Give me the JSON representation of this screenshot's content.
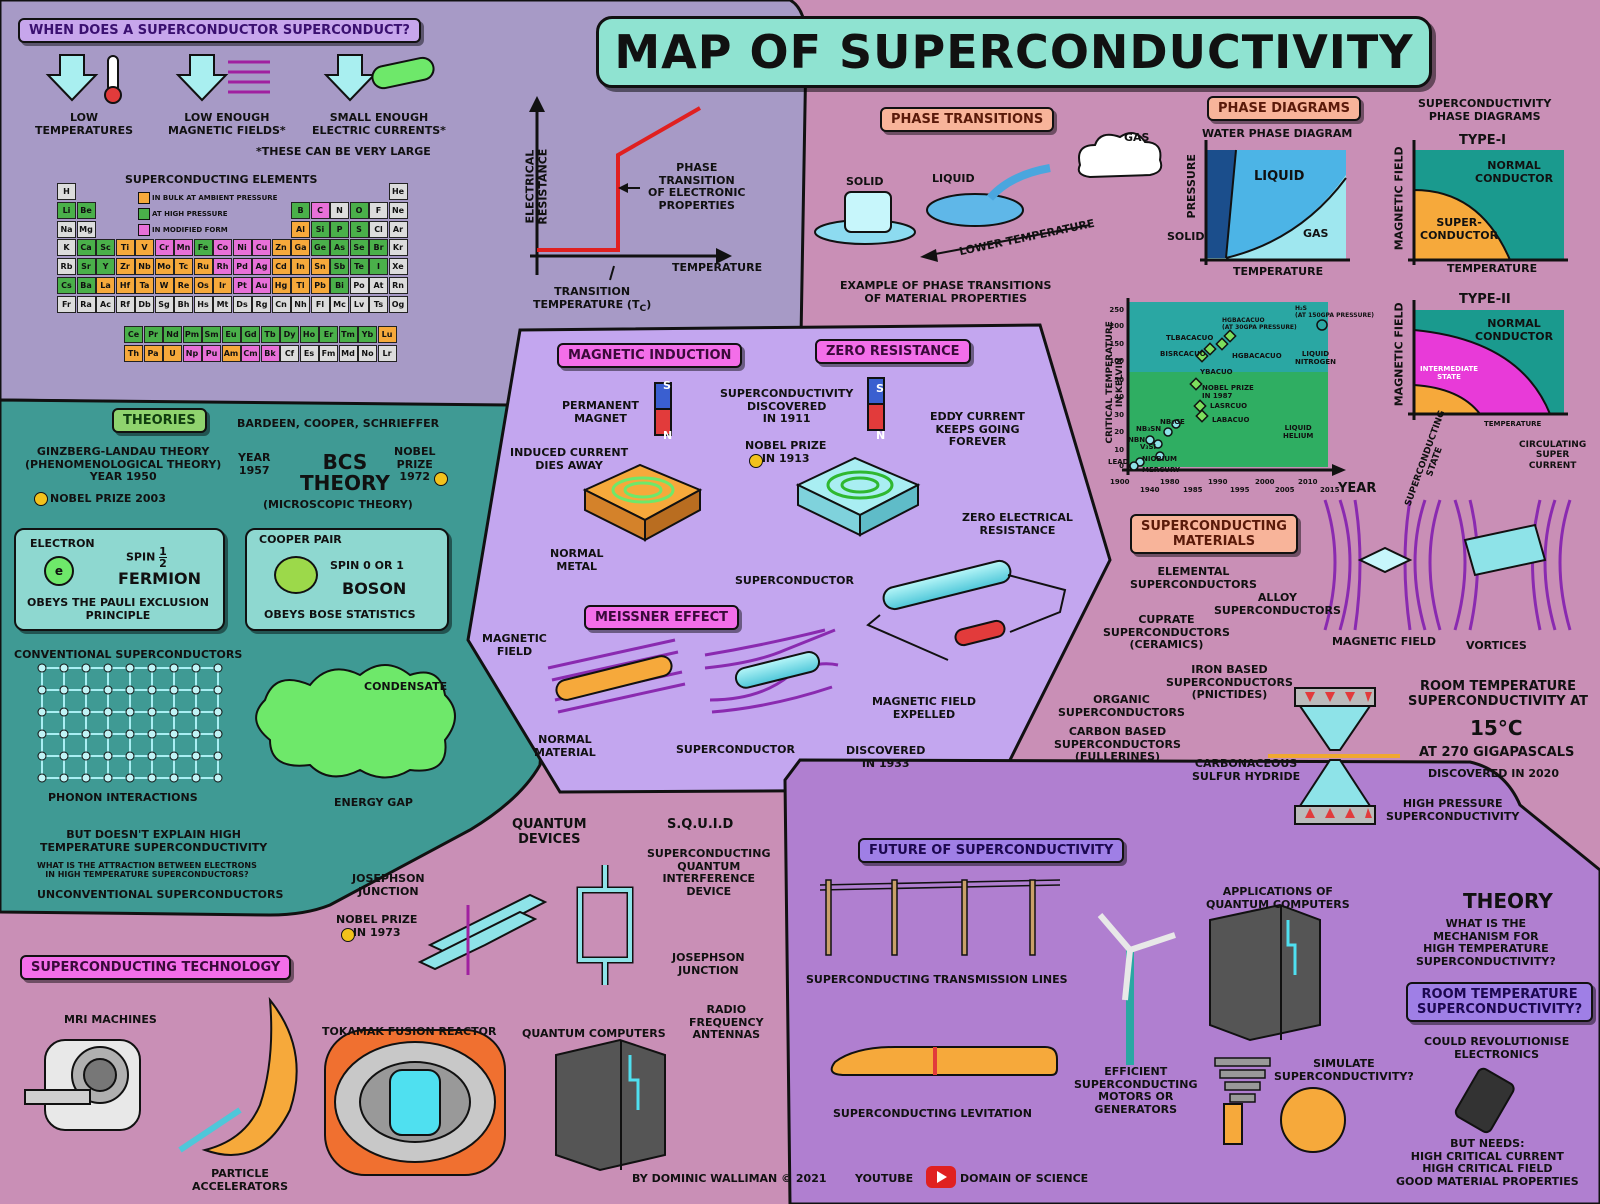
{
  "title": "MAP OF SUPERCONDUCTIVITY",
  "colors": {
    "accent_teal": "#8fe3d1",
    "panel_lavender": "#a79ac6",
    "panel_teal": "#3f9a94",
    "panel_purple": "#c3a6ef",
    "panel_violet": "#b07fd0",
    "background": "#c98fb6",
    "resistance_line": "#e02020"
  },
  "when": {
    "heading": "WHEN DOES A SUPERCONDUCTOR SUPERCONDUCT?",
    "c1": "LOW\nTEMPERATURES",
    "c2": "LOW ENOUGH\nMAGNETIC FIELDS*",
    "c3": "SMALL ENOUGH\nELECTRIC CURRENTS*",
    "note": "*THESE CAN BE VERY LARGE",
    "elements_title": "SUPERCONDUCTING ELEMENTS",
    "legend": [
      "IN BULK AT AMBIENT PRESSURE",
      "AT HIGH PRESSURE",
      "IN MODIFIED FORM"
    ]
  },
  "periodic": {
    "rows": [
      [
        "H",
        "",
        "",
        "",
        "",
        "",
        "",
        "",
        "",
        "",
        "",
        "",
        "",
        "",
        "",
        "",
        "",
        "He"
      ],
      [
        "Li",
        "Be",
        "",
        "",
        "",
        "",
        "",
        "",
        "",
        "",
        "",
        "",
        "B",
        "C",
        "N",
        "O",
        "F",
        "Ne"
      ],
      [
        "Na",
        "Mg",
        "",
        "",
        "",
        "",
        "",
        "",
        "",
        "",
        "",
        "",
        "Al",
        "Si",
        "P",
        "S",
        "Cl",
        "Ar"
      ],
      [
        "K",
        "Ca",
        "Sc",
        "Ti",
        "V",
        "Cr",
        "Mn",
        "Fe",
        "Co",
        "Ni",
        "Cu",
        "Zn",
        "Ga",
        "Ge",
        "As",
        "Se",
        "Br",
        "Kr"
      ],
      [
        "Rb",
        "Sr",
        "Y",
        "Zr",
        "Nb",
        "Mo",
        "Tc",
        "Ru",
        "Rh",
        "Pd",
        "Ag",
        "Cd",
        "In",
        "Sn",
        "Sb",
        "Te",
        "I",
        "Xe"
      ],
      [
        "Cs",
        "Ba",
        "La",
        "Hf",
        "Ta",
        "W",
        "Re",
        "Os",
        "Ir",
        "Pt",
        "Au",
        "Hg",
        "Tl",
        "Pb",
        "Bi",
        "Po",
        "At",
        "Rn"
      ],
      [
        "Fr",
        "Ra",
        "Ac",
        "Rf",
        "Db",
        "Sg",
        "Bh",
        "Hs",
        "Mt",
        "Ds",
        "Rg",
        "Cn",
        "Nh",
        "Fl",
        "Mc",
        "Lv",
        "Ts",
        "Og"
      ]
    ],
    "lanthanides": [
      "Ce",
      "Pr",
      "Nd",
      "Pm",
      "Sm",
      "Eu",
      "Gd",
      "Tb",
      "Dy",
      "Ho",
      "Er",
      "Tm",
      "Yb",
      "Lu"
    ],
    "actinides": [
      "Th",
      "Pa",
      "U",
      "Np",
      "Pu",
      "Am",
      "Cm",
      "Bk",
      "Cf",
      "Es",
      "Fm",
      "Md",
      "No",
      "Lr"
    ],
    "ambient": [
      "Al",
      "Ti",
      "V",
      "Zn",
      "Ga",
      "Zr",
      "Nb",
      "Mo",
      "Tc",
      "Ru",
      "Cd",
      "In",
      "Sn",
      "La",
      "Hf",
      "Ta",
      "W",
      "Re",
      "Os",
      "Ir",
      "Hg",
      "Tl",
      "Pb",
      "Th",
      "Pa",
      "U",
      "Am",
      "Lu"
    ],
    "pressure": [
      "Li",
      "B",
      "O",
      "P",
      "S",
      "Ca",
      "Sc",
      "Ge",
      "As",
      "Se",
      "Br",
      "Sr",
      "Y",
      "Sb",
      "Te",
      "I",
      "Cs",
      "Ba",
      "Bi",
      "Si",
      "Fe",
      "Be",
      "Eu",
      "Ce",
      "Pr",
      "Nd",
      "Gd",
      "Tb",
      "Dy",
      "Ho",
      "Er",
      "Tm",
      "Yb",
      "Pm",
      "Sm"
    ],
    "modified": [
      "C",
      "Cr",
      "Pt",
      "Pd",
      "Au",
      "Cu",
      "Ni",
      "Co",
      "Mn",
      "Rh",
      "Ag",
      "Sc2",
      "Re2",
      "Cm",
      "Bk",
      "Np",
      "Pu"
    ]
  },
  "resistance": {
    "ylabel": "ELECTRICAL\nRESISTANCE",
    "xlabel": "TEMPERATURE",
    "phase_note": "PHASE\nTRANSITION\nOF ELECTRONIC\nPROPERTIES",
    "tc_label": "TRANSITION\nTEMPERATURE (T",
    "tc_sub": "c",
    "tc_close": ")"
  },
  "phase_transitions": {
    "tag": "PHASE TRANSITIONS",
    "solid": "SOLID",
    "liquid": "LIQUID",
    "gas": "GAS",
    "lower": "LOWER TEMPERATURE",
    "example": "EXAMPLE OF PHASE TRANSITIONS\nOF MATERIAL PROPERTIES"
  },
  "phase_diagrams": {
    "tag": "PHASE DIAGRAMS",
    "water_title": "WATER PHASE DIAGRAM",
    "pressure": "PRESSURE",
    "liquid": "LIQUID",
    "solid": "SOLID",
    "gas": "GAS",
    "temperature": "TEMPERATURE",
    "sc_title": "SUPERCONDUCTIVITY\nPHASE DIAGRAMS",
    "type1": "TYPE-I",
    "type2": "TYPE-II",
    "magnetic_field": "MAGNETIC FIELD",
    "normal_conductor": "NORMAL\nCONDUCTOR",
    "super_conductor": "SUPER-\nCONDUCTOR",
    "intermediate": "INTERMEDIATE\nSTATE",
    "temperature2": "TEMPERATURE",
    "temperature3": "TEMPERATURE",
    "superconducting_state": "SUPERCONDUCTING\nSTATE",
    "circulating": "CIRCULATING\nSUPER\nCURRENT",
    "magnetic_field_label": "MAGNETIC FIELD",
    "vortices": "VORTICES"
  },
  "tc_chart": {
    "ylabel": "CRITICAL TEMPERATURE\nIN KELVIN",
    "xlabel": "YEAR",
    "yticks": [
      "250",
      "200",
      "150",
      "100",
      "50",
      "40",
      "30",
      "20",
      "10",
      "0"
    ],
    "xticks": [
      "1900",
      "1940",
      "1980",
      "1985",
      "1990",
      "1995",
      "2000",
      "2005",
      "2010",
      "2015"
    ],
    "liquid_nitrogen": "LIQUID\nNITROGEN",
    "liquid_helium": "LIQUID\nHELIUM",
    "points": [
      "H₂S\n(AT 150GPa PRESSURE)",
      "HgBaCaCuO\n(AT 30GPa PRESSURE)",
      "TlBaCaCuO",
      "BiSrCaCuO",
      "HgBaCaCuO",
      "YBaCuO",
      "NOBEL PRIZE\nIN 1987",
      "LaSrCuO",
      "LaBaCuO",
      "Nb₃Sn",
      "NbN",
      "Nb₃Ge",
      "V₃Si",
      "NIOBIUM",
      "MERCURY",
      "LEAD"
    ]
  },
  "materials": {
    "tag": "SUPERCONDUCTING\nMATERIALS",
    "elemental": "ELEMENTAL\nSUPERCONDUCTORS",
    "alloy": "ALLOY\nSUPERCONDUCTORS",
    "cuprate": "CUPRATE\nSUPERCONDUCTORS\n(CERAMICS)",
    "iron": "IRON BASED\nSUPERCONDUCTORS\n(PNICTIDES)",
    "organic": "ORGANIC\nSUPERCONDUCTORS",
    "carbon": "CARBON BASED\nSUPERCONDUCTORS\n(FULLERINES)",
    "sulfur": "CARBONACEOUS\nSULFUR HYDRIDE",
    "room": "ROOM TEMPERATURE\nSUPERCONDUCTIVITY AT",
    "room_temp": "15°C",
    "room_pressure": "AT 270 GIGAPASCALS",
    "room_year": "DISCOVERED IN 2020",
    "high_pressure": "HIGH PRESSURE\nSUPERCONDUCTIVITY"
  },
  "theories": {
    "tag": "THEORIES",
    "gl": "GINZBERG-LANDAU THEORY\n(PHENOMENOLOGICAL THEORY)\nYEAR 1950",
    "gl_nobel": "NOBEL PRIZE 2003",
    "bcs_names": "BARDEEN, COOPER, SCHRIEFFER",
    "bcs_year": "YEAR\n1957",
    "bcs": "BCS\nTHEORY",
    "bcs_nobel": "NOBEL\nPRIZE\n1972",
    "bcs_micro": "(MICROSCOPIC THEORY)",
    "electron": "ELECTRON",
    "spin_half_label": "SPIN",
    "spin_half_num": "1",
    "spin_half_den": "2",
    "fermion": "FERMION",
    "pauli": "OBEYS THE PAULI EXCLUSION\nPRINCIPLE",
    "cooper": "COOPER PAIR",
    "spin01": "SPIN 0 OR 1",
    "boson": "BOSON",
    "bose": "OBEYS BOSE STATISTICS",
    "conventional": "CONVENTIONAL SUPERCONDUCTORS",
    "condensate": "CONDENSATE",
    "phonon": "PHONON INTERACTIONS",
    "energy_gap": "ENERGY GAP",
    "doesnt": "BUT DOESN'T EXPLAIN HIGH\nTEMPERATURE SUPERCONDUCTIVITY",
    "what_attraction": "WHAT IS THE ATTRACTION BETWEEN ELECTRONS\nIN HIGH TEMPERATURE SUPERCONDUCTORS?",
    "unconventional": "UNCONVENTIONAL SUPERCONDUCTORS",
    "e": "e"
  },
  "center": {
    "induction_tag": "MAGNETIC INDUCTION",
    "zero_tag": "ZERO RESISTANCE",
    "permanent": "PERMANENT\nMAGNET",
    "induced": "INDUCED CURRENT\nDIES AWAY",
    "normal_metal": "NORMAL\nMETAL",
    "discovered1911": "SUPERCONDUCTIVITY\nDISCOVERED\nIN 1911",
    "nobel1913": "NOBEL PRIZE\nIN 1913",
    "eddy": "EDDY CURRENT\nKEEPS GOING\nFOREVER",
    "zero_electrical": "ZERO ELECTRICAL\nRESISTANCE",
    "superconductor": "SUPERCONDUCTOR",
    "meissner_tag": "MEISSNER EFFECT",
    "magnetic_field": "MAGNETIC\nFIELD",
    "normal_material": "NORMAL\nMATERIAL",
    "superconductor2": "SUPERCONDUCTOR",
    "expelled": "MAGNETIC FIELD\nEXPELLED",
    "discovered1933": "DISCOVERED\nIN 1933",
    "magnet_s": "S",
    "magnet_n": "N"
  },
  "technology": {
    "tag": "SUPERCONDUCTING TECHNOLOGY",
    "quantum_devices": "QUANTUM\nDEVICES",
    "josephson": "JOSEPHSON\nJUNCTION",
    "nobel1973": "NOBEL PRIZE\nIN 1973",
    "squid": "S.Q.U.I.D",
    "squid_full": "SUPERCONDUCTING\nQUANTUM\nINTERFERENCE\nDEVICE",
    "josephson2": "JOSEPHSON\nJUNCTION",
    "mri": "MRI MACHINES",
    "particle": "PARTICLE\nACCELERATORS",
    "tokamak": "TOKAMAK FUSION REACTOR",
    "quantum_computers": "QUANTUM COMPUTERS",
    "radio": "RADIO\nFREQUENCY\nANTENNAS"
  },
  "future": {
    "tag": "FUTURE OF SUPERCONDUCTIVITY",
    "lines": "SUPERCONDUCTING TRANSMISSION LINES",
    "levitation": "SUPERCONDUCTING LEVITATION",
    "motors": "EFFICIENT\nSUPERCONDUCTING\nMOTORS OR\nGENERATORS",
    "apps_qc": "APPLICATIONS OF\nQUANTUM COMPUTERS",
    "simulate": "SIMULATE\nSUPERCONDUCTIVITY?",
    "theory": "THEORY",
    "mechanism": "WHAT IS THE\nMECHANISM FOR\nHIGH TEMPERATURE\nSUPERCONDUCTIVITY?",
    "room_tag": "ROOM TEMPERATURE\nSUPERCONDUCTIVITY?",
    "revolution": "COULD REVOLUTIONISE\nELECTRONICS",
    "needs": "BUT NEEDS:\nHIGH CRITICAL CURRENT\nHIGH CRITICAL FIELD\nGOOD MATERIAL PROPERTIES"
  },
  "footer": {
    "author": "BY DOMINIC WALLIMAN © 2021",
    "youtube": "YOUTUBE",
    "channel": "DOMAIN OF SCIENCE"
  }
}
